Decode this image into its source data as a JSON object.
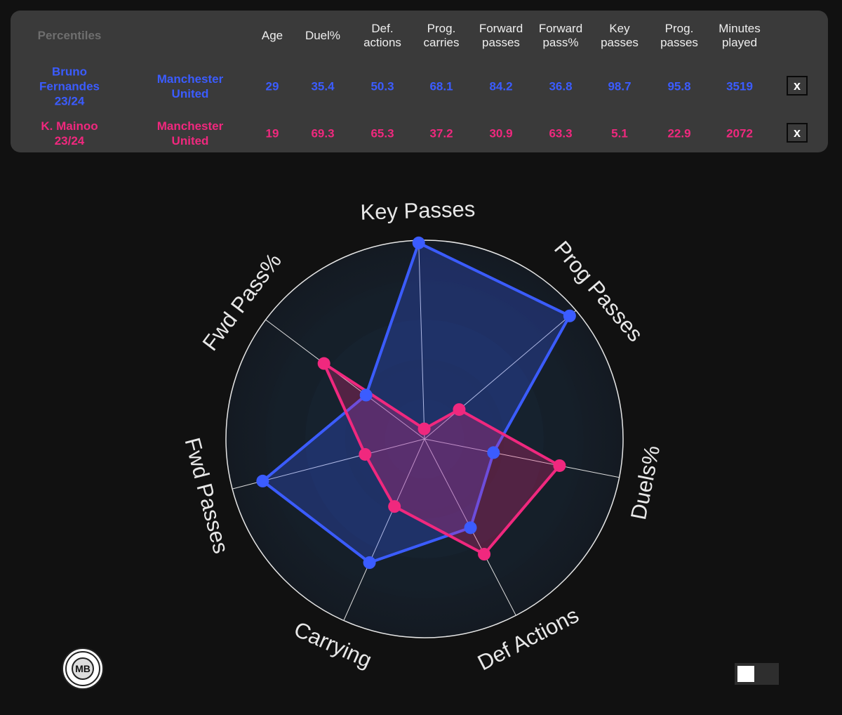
{
  "table": {
    "title": "Percentiles",
    "headers": [
      {
        "key": "age",
        "label": "Age"
      },
      {
        "key": "duel",
        "label": "Duel%"
      },
      {
        "key": "def",
        "label": "Def.\nactions"
      },
      {
        "key": "carries",
        "label": "Prog.\ncarries"
      },
      {
        "key": "fwd",
        "label": "Forward\npasses"
      },
      {
        "key": "fwdpct",
        "label": "Forward\npass%"
      },
      {
        "key": "key",
        "label": "Key\npasses"
      },
      {
        "key": "prog",
        "label": "Prog.\npasses"
      },
      {
        "key": "mins",
        "label": "Minutes\nplayed"
      }
    ],
    "rows": [
      {
        "player": "Bruno\nFernandes\n23/24",
        "team": "Manchester\nUnited",
        "color": "#3b5cff",
        "values": [
          "29",
          "35.4",
          "50.3",
          "68.1",
          "84.2",
          "36.8",
          "98.7",
          "95.8",
          "3519"
        ],
        "remove_label": "x"
      },
      {
        "player": "K. Mainoo\n23/24",
        "team": "Manchester\nUnited",
        "color": "#f0287e",
        "values": [
          "19",
          "69.3",
          "65.3",
          "37.2",
          "30.9",
          "63.3",
          "5.1",
          "22.9",
          "2072"
        ],
        "remove_label": "x"
      }
    ]
  },
  "chart_data": {
    "type": "radar",
    "axes": [
      "Key Passes",
      "Prog Passes",
      "Duels%",
      "Def Actions",
      "Carrying",
      "Fwd Passes",
      "Fwd Pass%"
    ],
    "rmax": 100,
    "series": [
      {
        "color": "#3b5cff",
        "values": [
          98.7,
          95.8,
          35.4,
          50.3,
          68.1,
          84.2,
          36.8
        ]
      },
      {
        "color": "#f0287e",
        "values": [
          5.1,
          22.9,
          69.3,
          65.3,
          37.2,
          30.9,
          63.3
        ]
      }
    ]
  },
  "logo_text": "MB",
  "colors": {
    "background": "#111111",
    "panel": "#3a3a3a",
    "blue": "#3b5cff",
    "pink": "#f0287e"
  }
}
